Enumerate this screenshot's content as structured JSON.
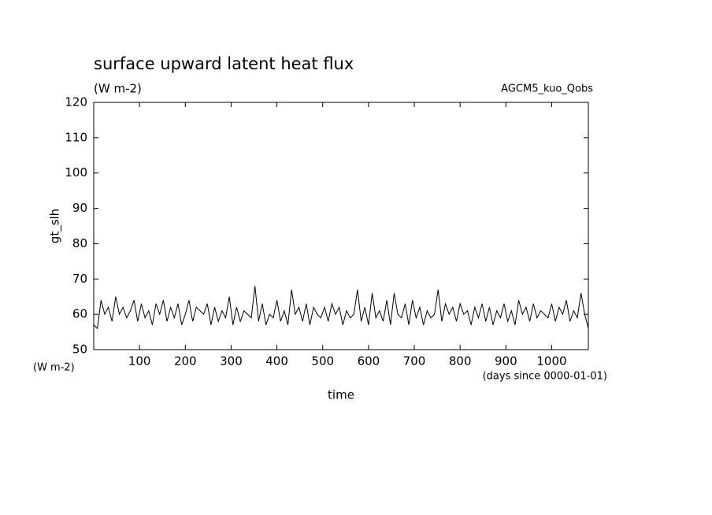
{
  "chart_data": {
    "type": "line",
    "title": "surface upward latent heat flux",
    "units": "(W m-2)",
    "annotation": "AGCM5_kuo_Qobs",
    "y_label": "gt_slh",
    "y_units": "(W m-2)",
    "x_label": "time",
    "x_units": "(days since 0000-01-01)",
    "xlim": [
      0,
      1080
    ],
    "ylim": [
      50,
      120
    ],
    "xticks": [
      100,
      200,
      300,
      400,
      500,
      600,
      700,
      800,
      900,
      1000
    ],
    "yticks": [
      50,
      60,
      70,
      80,
      90,
      100,
      110,
      120
    ],
    "color": "#000000",
    "x": [
      0,
      8,
      16,
      24,
      32,
      40,
      48,
      56,
      64,
      72,
      80,
      88,
      96,
      104,
      112,
      120,
      128,
      136,
      144,
      152,
      160,
      168,
      176,
      184,
      192,
      200,
      208,
      216,
      224,
      232,
      240,
      248,
      256,
      264,
      272,
      280,
      288,
      296,
      304,
      312,
      320,
      328,
      336,
      344,
      352,
      360,
      368,
      376,
      384,
      392,
      400,
      408,
      416,
      424,
      432,
      440,
      448,
      456,
      464,
      472,
      480,
      488,
      496,
      504,
      512,
      520,
      528,
      536,
      544,
      552,
      560,
      568,
      576,
      584,
      592,
      600,
      608,
      616,
      624,
      632,
      640,
      648,
      656,
      664,
      672,
      680,
      688,
      696,
      704,
      712,
      720,
      728,
      736,
      744,
      752,
      760,
      768,
      776,
      784,
      792,
      800,
      808,
      816,
      824,
      832,
      840,
      848,
      856,
      864,
      872,
      880,
      888,
      896,
      904,
      912,
      920,
      928,
      936,
      944,
      952,
      960,
      968,
      976,
      984,
      992,
      1000,
      1008,
      1016,
      1024,
      1032,
      1040,
      1048,
      1056,
      1064,
      1072,
      1080
    ],
    "values": [
      57,
      56,
      64,
      60,
      62,
      58,
      65,
      60,
      62,
      59,
      61,
      64,
      58,
      63,
      59,
      61,
      57,
      63,
      60,
      64,
      58,
      62,
      59,
      63,
      57,
      60,
      64,
      58,
      62,
      61,
      60,
      63,
      57,
      62,
      58,
      61,
      59,
      65,
      57,
      62,
      58,
      61,
      60,
      59,
      68,
      58,
      63,
      57,
      60,
      59,
      64,
      58,
      61,
      57,
      67,
      60,
      62,
      58,
      63,
      57,
      62,
      60,
      59,
      62,
      58,
      63,
      60,
      62,
      57,
      61,
      59,
      60,
      67,
      58,
      62,
      57,
      66,
      59,
      61,
      58,
      64,
      57,
      66,
      60,
      59,
      63,
      57,
      64,
      59,
      62,
      57,
      61,
      59,
      60,
      67,
      58,
      63,
      60,
      62,
      58,
      63,
      60,
      61,
      57,
      62,
      59,
      63,
      58,
      62,
      57,
      61,
      59,
      63,
      58,
      61,
      57,
      64,
      60,
      62,
      58,
      63,
      59,
      61,
      60,
      59,
      63,
      58,
      62,
      60,
      64,
      58,
      61,
      59,
      66,
      60,
      56
    ]
  }
}
